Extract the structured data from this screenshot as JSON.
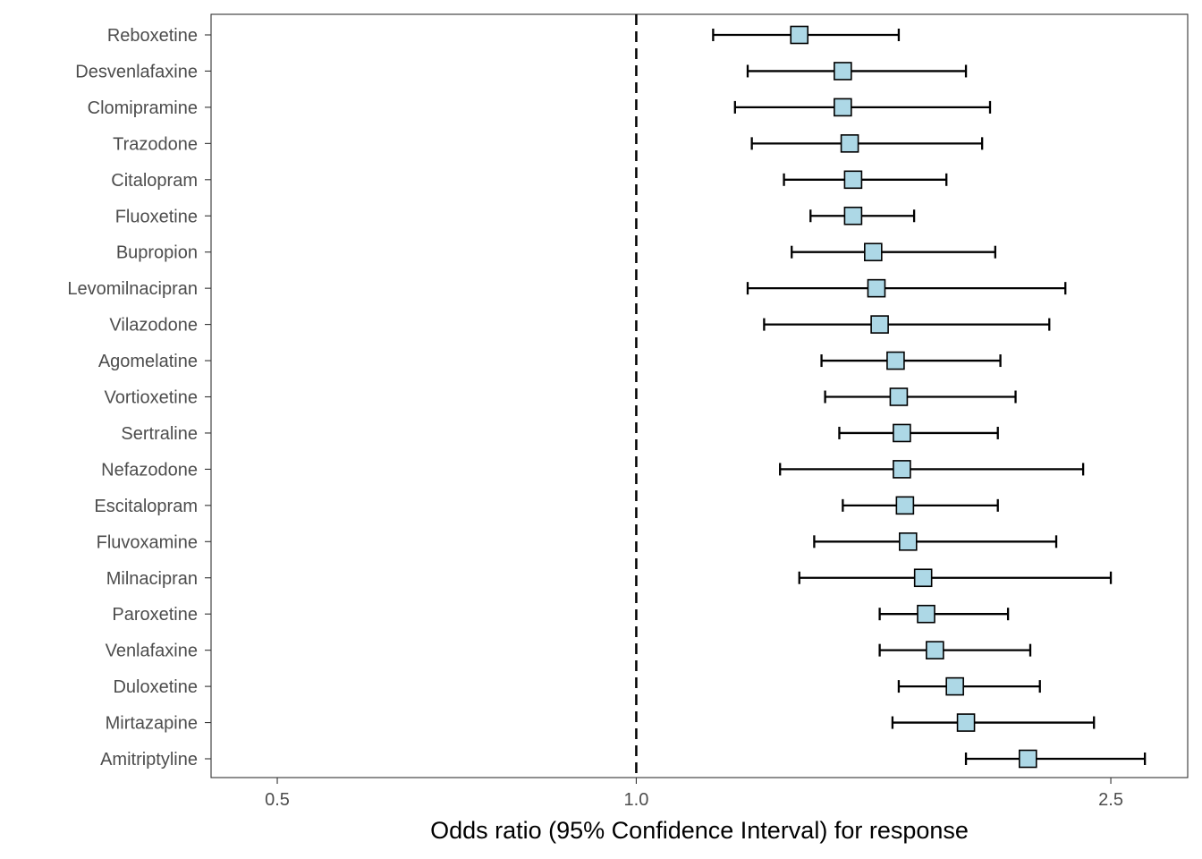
{
  "chart_data": {
    "type": "forest",
    "title": "",
    "xlabel": "Odds ratio (95% Confidence Interval) for response",
    "ylabel": "",
    "x_scale": "log",
    "xlim": [
      0.44,
      2.9
    ],
    "x_ticks": [
      0.5,
      1.0,
      2.5
    ],
    "x_tick_labels": [
      "0.5",
      "1.0",
      "2.5"
    ],
    "reference_line": 1.0,
    "grid": false,
    "legend": "none",
    "marker_fill": "#add8e6",
    "line_color": "#000000",
    "studies": [
      {
        "name": "Reboxetine",
        "or": 1.37,
        "lo": 1.16,
        "hi": 1.66
      },
      {
        "name": "Desvenlafaxine",
        "or": 1.49,
        "lo": 1.24,
        "hi": 1.89
      },
      {
        "name": "Clomipramine",
        "or": 1.49,
        "lo": 1.21,
        "hi": 1.98
      },
      {
        "name": "Trazodone",
        "or": 1.51,
        "lo": 1.25,
        "hi": 1.95
      },
      {
        "name": "Citalopram",
        "or": 1.52,
        "lo": 1.33,
        "hi": 1.82
      },
      {
        "name": "Fluoxetine",
        "or": 1.52,
        "lo": 1.4,
        "hi": 1.71
      },
      {
        "name": "Bupropion",
        "or": 1.58,
        "lo": 1.35,
        "hi": 2.0
      },
      {
        "name": "Levomilnacipran",
        "or": 1.59,
        "lo": 1.24,
        "hi": 2.29
      },
      {
        "name": "Vilazodone",
        "or": 1.6,
        "lo": 1.28,
        "hi": 2.22
      },
      {
        "name": "Agomelatine",
        "or": 1.65,
        "lo": 1.43,
        "hi": 2.02
      },
      {
        "name": "Vortioxetine",
        "or": 1.66,
        "lo": 1.44,
        "hi": 2.08
      },
      {
        "name": "Sertraline",
        "or": 1.67,
        "lo": 1.48,
        "hi": 2.01
      },
      {
        "name": "Nefazodone",
        "or": 1.67,
        "lo": 1.32,
        "hi": 2.37
      },
      {
        "name": "Escitalopram",
        "or": 1.68,
        "lo": 1.49,
        "hi": 2.01
      },
      {
        "name": "Fluvoxamine",
        "or": 1.69,
        "lo": 1.41,
        "hi": 2.25
      },
      {
        "name": "Milnacipran",
        "or": 1.74,
        "lo": 1.37,
        "hi": 2.5
      },
      {
        "name": "Paroxetine",
        "or": 1.75,
        "lo": 1.6,
        "hi": 2.05
      },
      {
        "name": "Venlafaxine",
        "or": 1.78,
        "lo": 1.6,
        "hi": 2.14
      },
      {
        "name": "Duloxetine",
        "or": 1.85,
        "lo": 1.66,
        "hi": 2.18
      },
      {
        "name": "Mirtazapine",
        "or": 1.89,
        "lo": 1.64,
        "hi": 2.42
      },
      {
        "name": "Amitriptyline",
        "or": 2.13,
        "lo": 1.89,
        "hi": 2.67
      }
    ]
  }
}
